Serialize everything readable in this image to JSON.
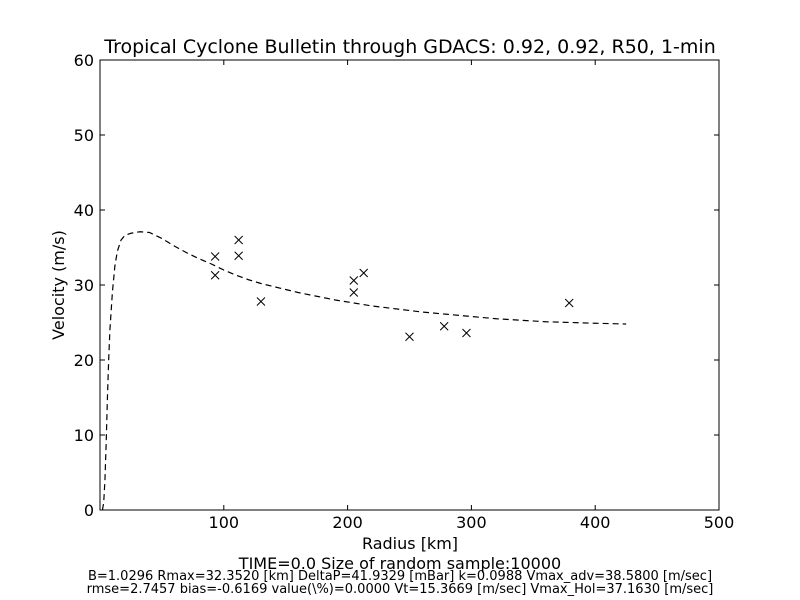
{
  "chart_data": {
    "type": "scatter",
    "title": "Tropical Cyclone Bulletin through GDACS: 0.92, 0.92, R50, 1-min",
    "xlabel": "Radius [km]",
    "ylabel": "Velocity (m/s)",
    "xlim": [
      0,
      500
    ],
    "ylim": [
      0,
      60
    ],
    "xticks": [
      "100",
      "200",
      "300",
      "400",
      "500"
    ],
    "yticks": [
      "0",
      "10",
      "20",
      "30",
      "40",
      "50",
      "60"
    ],
    "grid": false,
    "series": [
      {
        "style": "markers-x",
        "color": "#000000",
        "points": [
          [
            93,
            33.8
          ],
          [
            93,
            31.3
          ],
          [
            112,
            36.0
          ],
          [
            112,
            33.9
          ],
          [
            130,
            27.8
          ],
          [
            205,
            30.6
          ],
          [
            205,
            29.0
          ],
          [
            213,
            31.6
          ],
          [
            250,
            23.1
          ],
          [
            278,
            24.5
          ],
          [
            296,
            23.6
          ],
          [
            379,
            27.6
          ]
        ]
      },
      {
        "style": "dashed-line",
        "color": "#000000",
        "points": [
          [
            2,
            0
          ],
          [
            3,
            1
          ],
          [
            4,
            4
          ],
          [
            5,
            9
          ],
          [
            6,
            15
          ],
          [
            7,
            20
          ],
          [
            8,
            24
          ],
          [
            10,
            29
          ],
          [
            12,
            32.5
          ],
          [
            14,
            34.5
          ],
          [
            17,
            36
          ],
          [
            20,
            36.6
          ],
          [
            25,
            36.9
          ],
          [
            32.35,
            37.1
          ],
          [
            40,
            37.0
          ],
          [
            50,
            36.2
          ],
          [
            60,
            35.2
          ],
          [
            70,
            34.3
          ],
          [
            80,
            33.5
          ],
          [
            90,
            32.8
          ],
          [
            100,
            32.0
          ],
          [
            110,
            31.3
          ],
          [
            120,
            30.7
          ],
          [
            130,
            30.2
          ],
          [
            140,
            29.8
          ],
          [
            150,
            29.4
          ],
          [
            160,
            29.0
          ],
          [
            175,
            28.5
          ],
          [
            190,
            28.0
          ],
          [
            205,
            27.6
          ],
          [
            220,
            27.2
          ],
          [
            240,
            26.8
          ],
          [
            260,
            26.4
          ],
          [
            280,
            26.1
          ],
          [
            300,
            25.8
          ],
          [
            320,
            25.5
          ],
          [
            340,
            25.3
          ],
          [
            360,
            25.1
          ],
          [
            380,
            25.0
          ],
          [
            400,
            24.9
          ],
          [
            425,
            24.8
          ]
        ]
      }
    ]
  },
  "footer": {
    "time_line": "TIME=0.0     Size of random sample:10000",
    "params_line": "B=1.0296 Rmax=32.3520 [km]  DeltaP=41.9329 [mBar] k=0.0988 Vmax_adv=38.5800 [m/sec]",
    "stats_line": "rmse=2.7457 bias=-0.6169 value(\\%)=0.0000 Vt=15.3669 [m/sec] Vmax_Hol=37.1630 [m/sec]"
  }
}
